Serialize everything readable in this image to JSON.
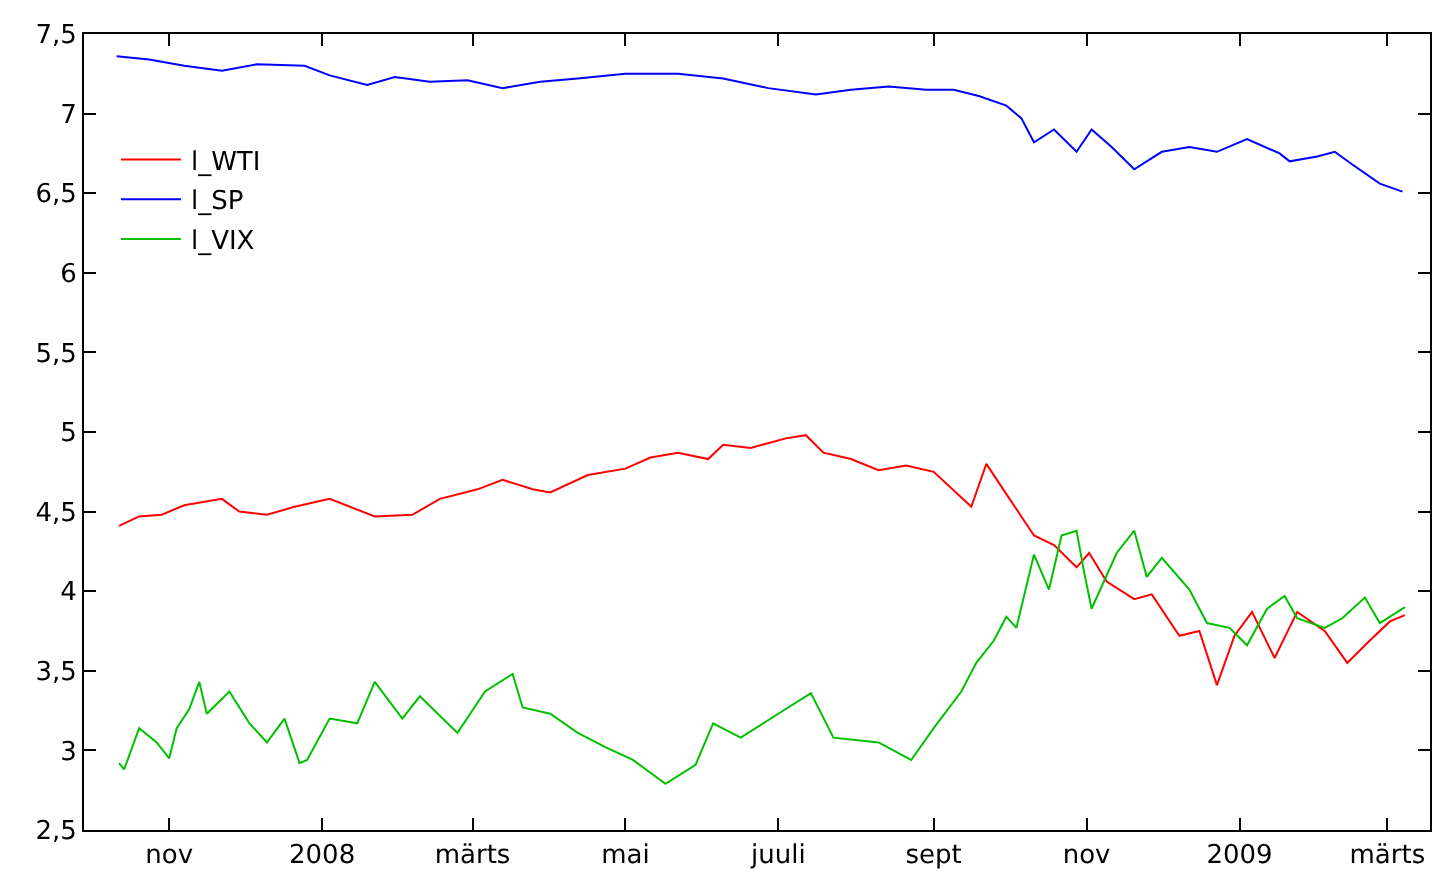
{
  "chart_data": {
    "type": "line",
    "xlim": [
      "2007-09-28",
      "2009-03-18"
    ],
    "xticks": [
      {
        "value": "2007-11-01",
        "label": "nov"
      },
      {
        "value": "2008-01-01",
        "label": "2008"
      },
      {
        "value": "2008-03-01",
        "label": "märts"
      },
      {
        "value": "2008-05-01",
        "label": "mai"
      },
      {
        "value": "2008-07-01",
        "label": "juuli"
      },
      {
        "value": "2008-09-01",
        "label": "sept"
      },
      {
        "value": "2008-11-01",
        "label": "nov"
      },
      {
        "value": "2009-01-01",
        "label": "2009"
      },
      {
        "value": "2009-03-01",
        "label": "märts"
      }
    ],
    "ylim": [
      2.5,
      7.5
    ],
    "yticks": [
      {
        "value": 2.5,
        "label": "2,5"
      },
      {
        "value": 3,
        "label": "3"
      },
      {
        "value": 3.5,
        "label": "3,5"
      },
      {
        "value": 4,
        "label": "4"
      },
      {
        "value": 4.5,
        "label": "4,5"
      },
      {
        "value": 5,
        "label": "5"
      },
      {
        "value": 5.5,
        "label": "5,5"
      },
      {
        "value": 6,
        "label": "6"
      },
      {
        "value": 6.5,
        "label": "6,5"
      },
      {
        "value": 7,
        "label": "7"
      },
      {
        "value": 7.5,
        "label": "7,5"
      }
    ],
    "legend": "top left",
    "marker": "none",
    "line_style": "solid",
    "series": [
      {
        "name": "l_WTI",
        "color": "#ff0000",
        "x": [
          "2007-10-12",
          "2007-10-20",
          "2007-10-29",
          "2007-11-07",
          "2007-11-22",
          "2007-11-29",
          "2007-12-10",
          "2007-12-21",
          "2008-01-04",
          "2008-01-22",
          "2008-02-06",
          "2008-02-17",
          "2008-03-03",
          "2008-03-13",
          "2008-03-25",
          "2008-04-01",
          "2008-04-16",
          "2008-05-01",
          "2008-05-11",
          "2008-05-22",
          "2008-06-03",
          "2008-06-09",
          "2008-06-20",
          "2008-07-04",
          "2008-07-12",
          "2008-07-19",
          "2008-07-30",
          "2008-08-10",
          "2008-08-21",
          "2008-09-01",
          "2008-09-16",
          "2008-09-22",
          "2008-09-30",
          "2008-10-11",
          "2008-10-19",
          "2008-10-28",
          "2008-11-02",
          "2008-11-09",
          "2008-11-20",
          "2008-11-27",
          "2008-12-08",
          "2008-12-16",
          "2008-12-23",
          "2008-12-30",
          "2009-01-06",
          "2009-01-15",
          "2009-01-24",
          "2009-02-04",
          "2009-02-13",
          "2009-02-22",
          "2009-03-02",
          "2009-03-08"
        ],
        "values": [
          4.41,
          4.47,
          4.48,
          4.54,
          4.58,
          4.5,
          4.48,
          4.53,
          4.58,
          4.47,
          4.48,
          4.58,
          4.64,
          4.7,
          4.64,
          4.62,
          4.73,
          4.77,
          4.84,
          4.87,
          4.83,
          4.92,
          4.9,
          4.96,
          4.98,
          4.87,
          4.83,
          4.76,
          4.79,
          4.75,
          4.53,
          4.8,
          4.61,
          4.35,
          4.29,
          4.15,
          4.24,
          4.06,
          3.95,
          3.98,
          3.72,
          3.75,
          3.41,
          3.72,
          3.87,
          3.58,
          3.87,
          3.75,
          3.55,
          3.69,
          3.81,
          3.85
        ]
      },
      {
        "name": "l_SP",
        "color": "#0000ff",
        "x": [
          "2007-10-11",
          "2007-10-24",
          "2007-11-07",
          "2007-11-22",
          "2007-12-06",
          "2007-12-25",
          "2008-01-04",
          "2008-01-19",
          "2008-01-30",
          "2008-02-13",
          "2008-02-28",
          "2008-03-13",
          "2008-03-28",
          "2008-04-12",
          "2008-05-01",
          "2008-05-22",
          "2008-06-09",
          "2008-06-27",
          "2008-07-16",
          "2008-07-30",
          "2008-08-14",
          "2008-08-29",
          "2008-09-09",
          "2008-09-19",
          "2008-09-30",
          "2008-10-06",
          "2008-10-11",
          "2008-10-19",
          "2008-10-28",
          "2008-11-03",
          "2008-11-11",
          "2008-11-20",
          "2008-12-01",
          "2008-12-12",
          "2008-12-23",
          "2009-01-04",
          "2009-01-17",
          "2009-01-21",
          "2009-02-01",
          "2009-02-08",
          "2009-02-15",
          "2009-02-26",
          "2009-03-07"
        ],
        "values": [
          7.36,
          7.34,
          7.3,
          7.27,
          7.31,
          7.3,
          7.24,
          7.18,
          7.23,
          7.2,
          7.21,
          7.16,
          7.2,
          7.22,
          7.25,
          7.25,
          7.22,
          7.16,
          7.12,
          7.15,
          7.17,
          7.15,
          7.15,
          7.11,
          7.05,
          6.97,
          6.82,
          6.9,
          6.76,
          6.9,
          6.79,
          6.65,
          6.76,
          6.79,
          6.76,
          6.84,
          6.75,
          6.7,
          6.73,
          6.76,
          6.68,
          6.56,
          6.51
        ]
      },
      {
        "name": "l_VIX",
        "color": "#00c000",
        "x": [
          "2007-10-12",
          "2007-10-14",
          "2007-10-20",
          "2007-10-27",
          "2007-11-01",
          "2007-11-04",
          "2007-11-09",
          "2007-11-13",
          "2007-11-16",
          "2007-11-25",
          "2007-12-03",
          "2007-12-10",
          "2007-12-17",
          "2007-12-23",
          "2007-12-26",
          "2008-01-04",
          "2008-01-15",
          "2008-01-22",
          "2008-02-02",
          "2008-02-09",
          "2008-02-24",
          "2008-03-06",
          "2008-03-17",
          "2008-03-21",
          "2008-04-01",
          "2008-04-12",
          "2008-04-23",
          "2008-05-04",
          "2008-05-17",
          "2008-05-29",
          "2008-06-05",
          "2008-06-16",
          "2008-07-01",
          "2008-07-14",
          "2008-07-23",
          "2008-08-10",
          "2008-08-23",
          "2008-09-01",
          "2008-09-12",
          "2008-09-18",
          "2008-09-25",
          "2008-09-30",
          "2008-10-04",
          "2008-10-11",
          "2008-10-17",
          "2008-10-22",
          "2008-10-28",
          "2008-10-31",
          "2008-11-03",
          "2008-11-13",
          "2008-11-20",
          "2008-11-25",
          "2008-12-01",
          "2008-12-12",
          "2008-12-19",
          "2008-12-28",
          "2009-01-04",
          "2009-01-12",
          "2009-01-19",
          "2009-01-24",
          "2009-02-04",
          "2009-02-11",
          "2009-02-20",
          "2009-02-26",
          "2009-03-08"
        ],
        "values": [
          2.92,
          2.88,
          3.14,
          3.05,
          2.95,
          3.14,
          3.26,
          3.43,
          3.23,
          3.37,
          3.17,
          3.05,
          3.2,
          2.92,
          2.94,
          3.2,
          3.17,
          3.43,
          3.2,
          3.34,
          3.11,
          3.37,
          3.48,
          3.27,
          3.23,
          3.11,
          3.02,
          2.94,
          2.79,
          2.91,
          3.17,
          3.08,
          3.23,
          3.36,
          3.08,
          3.05,
          2.94,
          3.14,
          3.37,
          3.55,
          3.69,
          3.84,
          3.77,
          4.23,
          4.01,
          4.35,
          4.38,
          4.12,
          3.89,
          4.24,
          4.38,
          4.09,
          4.21,
          4.01,
          3.8,
          3.77,
          3.66,
          3.89,
          3.97,
          3.83,
          3.77,
          3.83,
          3.96,
          3.8,
          3.9
        ]
      }
    ]
  }
}
